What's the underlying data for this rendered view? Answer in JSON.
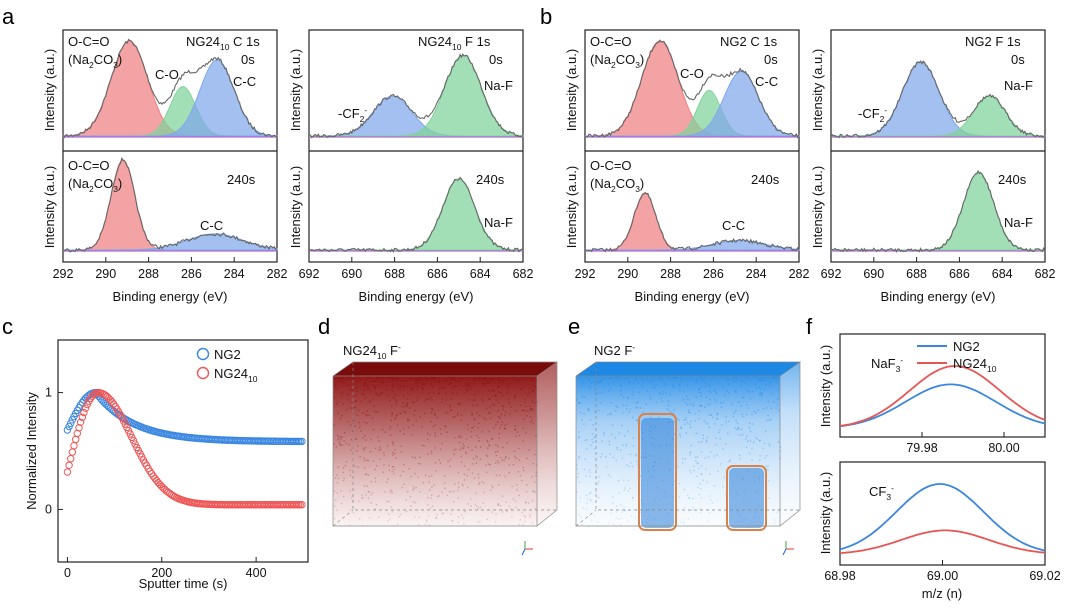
{
  "chart_data": [
    {
      "panel": "a",
      "type": "line",
      "title": "NG24₁₀ C 1s",
      "title_main": "NG24",
      "title_sub": "10",
      "title_tail": " C 1s",
      "xlabel": "Binding energy (eV)",
      "ylabel": "Intensity (a.u.)",
      "xlim": [
        292,
        282
      ],
      "xticks": [
        "292",
        "290",
        "288",
        "286",
        "284",
        "282"
      ],
      "time_top": "0s",
      "time_bottom": "240s",
      "peaks_top": [
        {
          "name": "O-C=O (Na₂CO₃)",
          "center": 288.9,
          "width": 0.85,
          "height": 1.0,
          "color": "#ee7f7f"
        },
        {
          "name": "C-O",
          "center": 286.4,
          "width": 0.6,
          "height": 0.52,
          "color": "#7fd39a"
        },
        {
          "name": "C-C",
          "center": 284.8,
          "width": 0.8,
          "height": 0.8,
          "color": "#7fa7ea"
        }
      ],
      "peaks_bottom": [
        {
          "name": "O-C=O (Na₂CO₃)",
          "center": 289.2,
          "width": 0.55,
          "height": 0.95,
          "color": "#ee7f7f"
        },
        {
          "name": "C-C",
          "center": 284.9,
          "width": 1.3,
          "height": 0.17,
          "color": "#7fa7ea"
        }
      ],
      "labels_top": {
        "l1": "O-C=O",
        "l2a": "(Na",
        "l2b": "2",
        "l2c": "CO",
        "l2d": "3",
        "l2e": ")",
        "co": "C-O",
        "cc": "C-C"
      },
      "labels_bottom": {
        "l1": "O-C=O",
        "l2a": "(Na",
        "l2b": "2",
        "l2c": "CO",
        "l2d": "3",
        "l2e": ")",
        "cc": "C-C"
      }
    },
    {
      "panel": "a",
      "type": "line",
      "title": "NG24₁₀ F 1s",
      "title_main": "NG24",
      "title_sub": "10",
      "title_tail": " F 1s",
      "xlabel": "Binding energy (eV)",
      "ylabel": "Intensity (a.u.)",
      "xlim": [
        692,
        682
      ],
      "xticks": [
        "692",
        "690",
        "688",
        "686",
        "684",
        "682"
      ],
      "time_top": "0s",
      "time_bottom": "240s",
      "peaks_top": [
        {
          "name": "-CF₂-",
          "center": 688.1,
          "width": 0.9,
          "height": 0.42,
          "color": "#7fa7ea"
        },
        {
          "name": "Na-F",
          "center": 684.8,
          "width": 0.85,
          "height": 0.85,
          "color": "#7fd39a"
        }
      ],
      "peaks_bottom": [
        {
          "name": "Na-F",
          "center": 685.0,
          "width": 0.75,
          "height": 0.75,
          "color": "#7fd39a"
        }
      ],
      "labels_top": {
        "cf_a": "-CF",
        "cf_b": "2",
        "cf_c": "-",
        "naf": "Na-F"
      },
      "labels_bottom": {
        "naf": "Na-F"
      }
    },
    {
      "panel": "b",
      "type": "line",
      "title": "NG2 C 1s",
      "xlabel": "Binding energy (eV)",
      "ylabel": "Intensity (a.u.)",
      "xlim": [
        292,
        282
      ],
      "xticks": [
        "292",
        "290",
        "288",
        "286",
        "284",
        "282"
      ],
      "time_top": "0s",
      "time_bottom": "240s",
      "peaks_top": [
        {
          "name": "O-C=O (Na₂CO₃)",
          "center": 288.5,
          "width": 0.85,
          "height": 1.0,
          "color": "#ee7f7f"
        },
        {
          "name": "C-O",
          "center": 286.2,
          "width": 0.55,
          "height": 0.48,
          "color": "#7fd39a"
        },
        {
          "name": "C-C",
          "center": 284.7,
          "width": 0.8,
          "height": 0.68,
          "color": "#7fa7ea"
        }
      ],
      "peaks_bottom": [
        {
          "name": "O-C=O (Na₂CO₃)",
          "center": 289.2,
          "width": 0.5,
          "height": 0.6,
          "color": "#ee7f7f"
        },
        {
          "name": "C-C",
          "center": 284.8,
          "width": 1.2,
          "height": 0.1,
          "color": "#7fa7ea"
        }
      ],
      "labels_top": {
        "l1": "O-C=O",
        "l2a": "(Na",
        "l2b": "2",
        "l2c": "CO",
        "l2d": "3",
        "l2e": ")",
        "co": "C-O",
        "cc": "C-C"
      },
      "labels_bottom": {
        "l1": "O-C=O",
        "l2a": "(Na",
        "l2b": "2",
        "l2c": "CO",
        "l2d": "3",
        "l2e": ")",
        "cc": "C-C"
      }
    },
    {
      "panel": "b",
      "type": "line",
      "title": "NG2 F 1s",
      "xlabel": "Binding energy (eV)",
      "ylabel": "Intensity (a.u.)",
      "xlim": [
        692,
        682
      ],
      "xticks": [
        "692",
        "690",
        "688",
        "686",
        "684",
        "682"
      ],
      "time_top": "0s",
      "time_bottom": "240s",
      "peaks_top": [
        {
          "name": "-CF₂-",
          "center": 687.8,
          "width": 0.85,
          "height": 0.78,
          "color": "#7fa7ea"
        },
        {
          "name": "Na-F",
          "center": 684.6,
          "width": 0.75,
          "height": 0.42,
          "color": "#7fd39a"
        }
      ],
      "peaks_bottom": [
        {
          "name": "Na-F",
          "center": 685.1,
          "width": 0.7,
          "height": 0.82,
          "color": "#7fd39a"
        }
      ],
      "labels_top": {
        "cf_a": "-CF",
        "cf_b": "2",
        "cf_c": "-",
        "naf": "Na-F"
      },
      "labels_bottom": {
        "naf": "Na-F"
      }
    },
    {
      "panel": "c",
      "type": "scatter",
      "xlabel": "Sputter time (s)",
      "ylabel": "Normalized Intensity",
      "xlim": [
        -20,
        510
      ],
      "ylim": [
        -0.45,
        1.45
      ],
      "xticks": [
        0,
        200,
        400
      ],
      "yticks": [
        0,
        1
      ],
      "series": [
        {
          "name": "NG2",
          "color": "#3a86e0",
          "peak_time": 60,
          "plateau": 0.58,
          "start": 0.68
        },
        {
          "name": "NG24₁₀",
          "color": "#ee5555",
          "peak_time": 65,
          "plateau": 0.04,
          "start": 0.32
        }
      ],
      "legend": {
        "ng2": "NG2",
        "ng24": "NG24",
        "ng24_sub": "10"
      }
    },
    {
      "panel": "d",
      "type": "other",
      "title_main": "NG24",
      "title_sub": "10",
      "title_tail": " F",
      "title_sup": "-",
      "color": "#8b0d0d"
    },
    {
      "panel": "e",
      "type": "other",
      "title_main": "NG2 F",
      "title_sup": "-",
      "color": "#1e88e5",
      "box_color": "#d9824a"
    },
    {
      "panel": "f",
      "type": "line",
      "ylabel": "Intensity (a.u.)",
      "xlabel": "m/z (n)",
      "top": {
        "label_a": "NaF",
        "label_b": "3",
        "label_c": "-",
        "xlim": [
          79.96,
          80.01
        ],
        "xticks": [
          "79.98",
          "80.00"
        ],
        "NG2": {
          "center": 79.987,
          "height": 0.55
        },
        "NG24": {
          "center": 79.988,
          "height": 0.78
        }
      },
      "bottom": {
        "label_a": "CF",
        "label_b": "3",
        "label_c": "-",
        "xlim": [
          68.98,
          69.02
        ],
        "xticks": [
          "68.98",
          "69.00",
          "69.02"
        ],
        "NG2": {
          "center": 68.9995,
          "height": 0.88
        },
        "NG24": {
          "center": 69.0005,
          "height": 0.3
        }
      },
      "series": [
        {
          "name": "NG2",
          "color": "#3a86e0"
        },
        {
          "name": "NG24₁₀",
          "color": "#e85555"
        }
      ],
      "legend": {
        "ng2": "NG2",
        "ng24": "NG24",
        "ng24_sub": "10"
      }
    }
  ],
  "panel_letters": {
    "a": "a",
    "b": "b",
    "c": "c",
    "d": "d",
    "e": "e",
    "f": "f"
  }
}
